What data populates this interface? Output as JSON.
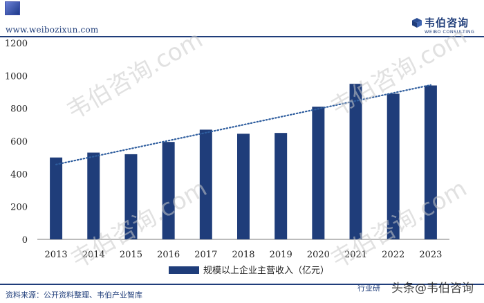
{
  "header": {
    "site_url": "www.weibozixun.com",
    "brand_name": "韦伯咨询",
    "brand_sub": "WEIBO CONSULTING"
  },
  "footer": {
    "source": "资料来源：公开资料整理、韦伯产业智库",
    "left_mark": "行业研",
    "watermark": "头条@韦伯咨询"
  },
  "watermarks": [
    "韦伯咨询.com",
    "韦伯咨询.com",
    "韦伯咨询.com",
    "韦伯咨询.com"
  ],
  "colors": {
    "bar": "#1f3d7a",
    "trend": "#2e5d9e",
    "accent": "#1f3d7a"
  },
  "chart_data": {
    "type": "bar",
    "categories": [
      "2013",
      "2014",
      "2015",
      "2016",
      "2017",
      "2018",
      "2019",
      "2020",
      "2021",
      "2022",
      "2023"
    ],
    "series": [
      {
        "name": "规模以上企业主营收入（亿元）",
        "values": [
          500,
          530,
          520,
          595,
          670,
          645,
          650,
          810,
          950,
          890,
          940
        ]
      }
    ],
    "trendline": {
      "type": "linear",
      "style": "dotted"
    },
    "ylim": [
      0,
      1200
    ],
    "yticks": [
      0,
      200,
      400,
      600,
      800,
      1000,
      1200
    ],
    "legend": "bottom",
    "grid": false
  }
}
